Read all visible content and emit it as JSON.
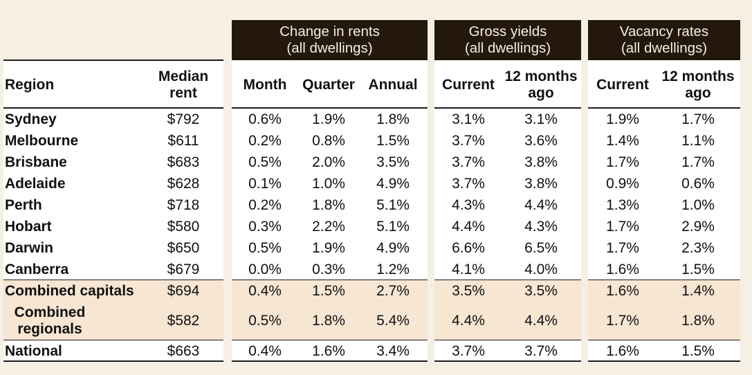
{
  "groups": {
    "change": {
      "line1": "Change in rents",
      "line2": "(all dwellings)"
    },
    "yields": {
      "line1": "Gross yields",
      "line2": "(all dwellings)"
    },
    "vacancy": {
      "line1": "Vacancy rates",
      "line2": "(all dwellings)"
    }
  },
  "headers": {
    "region": "Region",
    "median_l1": "Median",
    "median_l2": "rent",
    "month": "Month",
    "quarter": "Quarter",
    "annual": "Annual",
    "yield_current": "Current",
    "yield_prev_l1": "12 months",
    "yield_prev_l2": "ago",
    "vac_current": "Current",
    "vac_prev_l1": "12 months",
    "vac_prev_l2": "ago"
  },
  "rows": [
    {
      "region": "Sydney",
      "rent": "$792",
      "month": "0.6%",
      "quarter": "1.9%",
      "annual": "1.8%",
      "yield_cur": "3.1%",
      "yield_prev": "3.1%",
      "vac_cur": "1.9%",
      "vac_prev": "1.7%"
    },
    {
      "region": "Melbourne",
      "rent": "$611",
      "month": "0.2%",
      "quarter": "0.8%",
      "annual": "1.5%",
      "yield_cur": "3.7%",
      "yield_prev": "3.6%",
      "vac_cur": "1.4%",
      "vac_prev": "1.1%"
    },
    {
      "region": "Brisbane",
      "rent": "$683",
      "month": "0.5%",
      "quarter": "2.0%",
      "annual": "3.5%",
      "yield_cur": "3.7%",
      "yield_prev": "3.8%",
      "vac_cur": "1.7%",
      "vac_prev": "1.7%"
    },
    {
      "region": "Adelaide",
      "rent": "$628",
      "month": "0.1%",
      "quarter": "1.0%",
      "annual": "4.9%",
      "yield_cur": "3.7%",
      "yield_prev": "3.8%",
      "vac_cur": "0.9%",
      "vac_prev": "0.6%"
    },
    {
      "region": "Perth",
      "rent": "$718",
      "month": "0.2%",
      "quarter": "1.8%",
      "annual": "5.1%",
      "yield_cur": "4.3%",
      "yield_prev": "4.4%",
      "vac_cur": "1.3%",
      "vac_prev": "1.0%"
    },
    {
      "region": "Hobart",
      "rent": "$580",
      "month": "0.3%",
      "quarter": "2.2%",
      "annual": "5.1%",
      "yield_cur": "4.4%",
      "yield_prev": "4.3%",
      "vac_cur": "1.7%",
      "vac_prev": "2.9%"
    },
    {
      "region": "Darwin",
      "rent": "$650",
      "month": "0.5%",
      "quarter": "1.9%",
      "annual": "4.9%",
      "yield_cur": "6.6%",
      "yield_prev": "6.5%",
      "vac_cur": "1.7%",
      "vac_prev": "2.3%"
    },
    {
      "region": "Canberra",
      "rent": "$679",
      "month": "0.0%",
      "quarter": "0.3%",
      "annual": "1.2%",
      "yield_cur": "4.1%",
      "yield_prev": "4.0%",
      "vac_cur": "1.6%",
      "vac_prev": "1.5%"
    },
    {
      "region": "Combined capitals",
      "rent": "$694",
      "month": "0.4%",
      "quarter": "1.5%",
      "annual": "2.7%",
      "yield_cur": "3.5%",
      "yield_prev": "3.5%",
      "vac_cur": "1.6%",
      "vac_prev": "1.4%"
    },
    {
      "region": "Combined regionals",
      "rent": "$582",
      "month": "0.5%",
      "quarter": "1.8%",
      "annual": "5.4%",
      "yield_cur": "4.4%",
      "yield_prev": "4.4%",
      "vac_cur": "1.7%",
      "vac_prev": "1.8%"
    },
    {
      "region": "National",
      "rent": "$663",
      "month": "0.4%",
      "quarter": "1.6%",
      "annual": "3.4%",
      "yield_cur": "3.7%",
      "yield_prev": "3.7%",
      "vac_cur": "1.6%",
      "vac_prev": "1.5%"
    }
  ],
  "colors": {
    "header_band": "#24170c",
    "page_bg": "#f5efe4",
    "shaded_rows": "#f6e6d2"
  }
}
